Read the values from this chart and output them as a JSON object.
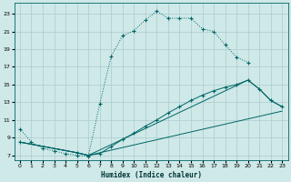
{
  "background_color": "#cfe8e8",
  "grid_color": "#aacccc",
  "line_color": "#006666",
  "xlim": [
    -0.5,
    23.5
  ],
  "ylim": [
    6.5,
    24.2
  ],
  "xticks": [
    0,
    1,
    2,
    3,
    4,
    5,
    6,
    7,
    8,
    9,
    10,
    11,
    12,
    13,
    14,
    15,
    16,
    17,
    18,
    19,
    20,
    21,
    22,
    23
  ],
  "yticks": [
    7,
    9,
    11,
    13,
    15,
    17,
    19,
    21,
    23
  ],
  "xlabel": "Humidex (Indice chaleur)",
  "curve1_x": [
    0,
    1,
    2,
    3,
    4,
    5,
    6,
    7,
    8,
    9,
    10,
    11,
    12,
    13,
    14,
    15,
    16,
    17,
    18,
    19,
    20
  ],
  "curve1_y": [
    10.0,
    8.5,
    7.8,
    7.5,
    7.2,
    7.0,
    6.9,
    12.8,
    18.2,
    20.5,
    21.1,
    22.3,
    23.3,
    22.5,
    22.5,
    22.5,
    21.3,
    21.0,
    19.5,
    18.1,
    17.5
  ],
  "curve1_style": "dotted",
  "curve2_x": [
    0,
    5,
    6,
    7,
    8,
    9,
    10,
    11,
    12,
    13,
    14,
    15,
    16,
    17,
    18,
    19,
    20,
    21,
    22,
    23
  ],
  "curve2_y": [
    8.5,
    7.3,
    7.0,
    7.2,
    8.0,
    8.8,
    9.5,
    10.3,
    11.0,
    11.8,
    12.5,
    13.2,
    13.8,
    14.3,
    14.7,
    15.0,
    15.5,
    14.5,
    13.2,
    12.5
  ],
  "curve2_style": "solid",
  "curve3_x": [
    0,
    5,
    6,
    23
  ],
  "curve3_y": [
    8.5,
    7.3,
    7.0,
    12.0
  ],
  "curve3_style": "solid",
  "curve4_x": [
    0,
    5,
    6,
    20,
    21,
    22,
    23
  ],
  "curve4_y": [
    8.5,
    7.3,
    7.0,
    15.5,
    14.5,
    13.2,
    12.5
  ],
  "curve4_style": "solid"
}
